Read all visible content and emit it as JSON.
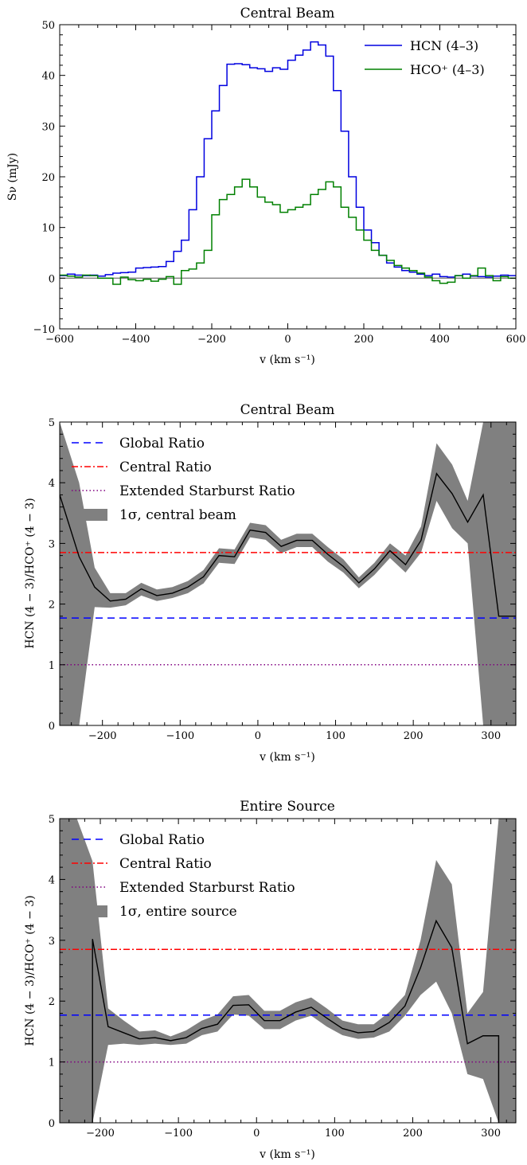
{
  "chart_data": [
    {
      "type": "line",
      "title": "Central Beam",
      "xlabel": "v (km s⁻¹)",
      "ylabel": "Sν (mJy)",
      "xlim": [
        -600,
        600
      ],
      "ylim": [
        -10,
        50
      ],
      "xticks": [
        -600,
        -400,
        -200,
        0,
        200,
        400,
        600
      ],
      "xtick_labels": [
        "−600",
        "−400",
        "−200",
        "0",
        "200",
        "400",
        "600"
      ],
      "yticks": [
        -10,
        0,
        10,
        20,
        30,
        40,
        50
      ],
      "ytick_labels": [
        "−10",
        "0",
        "10",
        "20",
        "30",
        "40",
        "50"
      ],
      "legend_position": "top-right",
      "zero_line": true,
      "step_width": 20,
      "x": [
        -600,
        -580,
        -560,
        -540,
        -520,
        -500,
        -480,
        -460,
        -440,
        -420,
        -400,
        -380,
        -360,
        -340,
        -320,
        -300,
        -280,
        -260,
        -240,
        -220,
        -200,
        -180,
        -160,
        -140,
        -120,
        -100,
        -80,
        -60,
        -40,
        -20,
        0,
        20,
        40,
        60,
        80,
        100,
        120,
        140,
        160,
        180,
        200,
        220,
        240,
        260,
        280,
        300,
        320,
        340,
        360,
        380,
        400,
        420,
        440,
        460,
        480,
        500,
        520,
        540,
        560,
        580
      ],
      "series": [
        {
          "name": "HCN (4–3)",
          "color": "#0000e0",
          "values": [
            0.5,
            0.8,
            0.6,
            0.5,
            0.6,
            0.4,
            0.7,
            1.0,
            1.1,
            1.2,
            2.0,
            2.1,
            2.2,
            2.3,
            3.3,
            5.3,
            7.5,
            13.5,
            20.0,
            27.5,
            33.0,
            38.0,
            42.2,
            42.3,
            42.1,
            41.5,
            41.3,
            40.8,
            41.5,
            41.2,
            43.0,
            44.0,
            45.0,
            46.6,
            46.0,
            43.8,
            37.0,
            29.0,
            20.0,
            14.0,
            9.5,
            7.0,
            4.5,
            3.0,
            2.2,
            1.5,
            1.2,
            0.8,
            0.5,
            0.8,
            0.3,
            0.2,
            0.5,
            0.8,
            0.4,
            0.3,
            0.2,
            0.4,
            0.6,
            0.5
          ]
        },
        {
          "name": "HCO⁺ (4–3)",
          "color": "#008000",
          "values": [
            0.6,
            0.4,
            0.2,
            0.6,
            0.5,
            0.0,
            0.0,
            -1.2,
            0.2,
            -0.3,
            -0.5,
            -0.2,
            -0.6,
            -0.2,
            0.3,
            -1.2,
            1.5,
            1.8,
            3.0,
            5.5,
            12.5,
            15.5,
            16.5,
            18.0,
            19.5,
            18.0,
            16.0,
            15.0,
            14.5,
            13.0,
            13.5,
            14.0,
            14.5,
            16.5,
            17.5,
            19.0,
            18.0,
            14.0,
            12.0,
            9.5,
            7.5,
            5.5,
            4.5,
            3.5,
            2.5,
            2.0,
            1.5,
            1.0,
            0.2,
            -0.5,
            -1.0,
            -0.8,
            0.5,
            0.0,
            0.5,
            2.0,
            0.5,
            -0.5,
            0.3,
            0.0
          ]
        }
      ]
    },
    {
      "type": "line",
      "title": "Central Beam",
      "xlabel": "v (km s⁻¹)",
      "ylabel": "HCN (4 − 3)/HCO⁺ (4 − 3)",
      "xlim": [
        -255,
        332
      ],
      "ylim": [
        0,
        5
      ],
      "xticks": [
        -200,
        -100,
        0,
        100,
        200,
        300
      ],
      "xtick_labels": [
        "−200",
        "−100",
        "0",
        "100",
        "200",
        "300"
      ],
      "yticks": [
        0,
        1,
        2,
        3,
        4,
        5
      ],
      "ytick_labels": [
        "0",
        "1",
        "2",
        "3",
        "4",
        "5"
      ],
      "legend_position": "top-left",
      "reference_lines": [
        {
          "name": "Global Ratio",
          "value": 1.77,
          "color": "#0000ff",
          "style": "dashed"
        },
        {
          "name": "Central Ratio",
          "value": 2.85,
          "color": "#ff0000",
          "style": "dashdot"
        },
        {
          "name": "Extended Starburst Ratio",
          "value": 1.0,
          "color": "#800080",
          "style": "dotted"
        }
      ],
      "band_name": "1σ, central beam",
      "band_color": "#808080",
      "x": [
        -255,
        -230,
        -210,
        -190,
        -170,
        -150,
        -130,
        -110,
        -90,
        -70,
        -50,
        -30,
        -10,
        10,
        30,
        50,
        70,
        90,
        110,
        130,
        150,
        170,
        190,
        210,
        230,
        250,
        270,
        290,
        310,
        332
      ],
      "ratio": [
        3.8,
        2.78,
        2.28,
        2.05,
        2.08,
        2.25,
        2.14,
        2.18,
        2.28,
        2.45,
        2.8,
        2.78,
        3.22,
        3.18,
        2.95,
        3.05,
        3.05,
        2.82,
        2.62,
        2.35,
        2.58,
        2.88,
        2.65,
        3.05,
        4.15,
        3.82,
        3.35,
        3.8,
        1.8,
        1.8
      ],
      "band_lower": [
        0.0,
        0.0,
        1.95,
        1.94,
        1.98,
        2.14,
        2.05,
        2.1,
        2.18,
        2.34,
        2.68,
        2.66,
        3.1,
        3.06,
        2.84,
        2.94,
        2.94,
        2.7,
        2.52,
        2.26,
        2.48,
        2.76,
        2.52,
        2.85,
        3.7,
        3.25,
        3.0,
        0.0,
        0.0,
        0.0
      ],
      "band_upper": [
        5.0,
        4.0,
        2.6,
        2.18,
        2.18,
        2.35,
        2.24,
        2.28,
        2.38,
        2.56,
        2.92,
        2.9,
        3.34,
        3.3,
        3.06,
        3.16,
        3.16,
        2.94,
        2.74,
        2.44,
        2.68,
        3.0,
        2.8,
        3.28,
        4.65,
        4.3,
        3.7,
        5.0,
        5.0,
        5.0
      ]
    },
    {
      "type": "line",
      "title": "Entire Source",
      "xlabel": "v (km s⁻¹)",
      "ylabel": "HCN (4 − 3)/HCO⁺ (4 − 3)",
      "xlim": [
        -252,
        332
      ],
      "ylim": [
        0,
        5
      ],
      "xticks": [
        -200,
        -100,
        0,
        100,
        200,
        300
      ],
      "xtick_labels": [
        "−200",
        "−100",
        "0",
        "100",
        "200",
        "300"
      ],
      "yticks": [
        0,
        1,
        2,
        3,
        4,
        5
      ],
      "ytick_labels": [
        "0",
        "1",
        "2",
        "3",
        "4",
        "5"
      ],
      "legend_position": "top-left",
      "reference_lines": [
        {
          "name": "Global Ratio",
          "value": 1.77,
          "color": "#0000ff",
          "style": "dashed"
        },
        {
          "name": "Central Ratio",
          "value": 2.85,
          "color": "#ff0000",
          "style": "dashdot"
        },
        {
          "name": "Extended Starburst Ratio",
          "value": 1.0,
          "color": "#800080",
          "style": "dotted"
        }
      ],
      "band_name": "1σ, entire source",
      "band_color": "#808080",
      "x": [
        -210,
        -210,
        -190,
        -170,
        -150,
        -130,
        -110,
        -90,
        -70,
        -50,
        -30,
        -10,
        10,
        30,
        50,
        70,
        90,
        110,
        130,
        150,
        170,
        190,
        210,
        230,
        250,
        270,
        290,
        310,
        310
      ],
      "ratio": [
        0.0,
        3.02,
        1.58,
        1.48,
        1.38,
        1.4,
        1.35,
        1.4,
        1.55,
        1.62,
        1.93,
        1.94,
        1.68,
        1.68,
        1.82,
        1.9,
        1.72,
        1.55,
        1.48,
        1.5,
        1.65,
        1.92,
        2.55,
        3.32,
        2.88,
        1.3,
        1.43,
        1.43,
        0.0
      ],
      "band_x": [
        -252,
        -230,
        -210,
        -190,
        -170,
        -150,
        -130,
        -110,
        -90,
        -70,
        -50,
        -30,
        -10,
        10,
        30,
        50,
        70,
        90,
        110,
        130,
        150,
        170,
        190,
        210,
        230,
        250,
        270,
        290,
        310,
        332
      ],
      "band_lower": [
        0.0,
        0.0,
        0.0,
        1.28,
        1.3,
        1.28,
        1.3,
        1.28,
        1.3,
        1.44,
        1.5,
        1.78,
        1.76,
        1.54,
        1.54,
        1.68,
        1.76,
        1.58,
        1.44,
        1.38,
        1.4,
        1.5,
        1.76,
        2.1,
        2.32,
        1.8,
        0.8,
        0.72,
        0.0,
        0.0
      ],
      "band_upper": [
        5.0,
        5.0,
        4.3,
        1.88,
        1.68,
        1.5,
        1.52,
        1.42,
        1.52,
        1.68,
        1.78,
        2.08,
        2.1,
        1.84,
        1.84,
        1.98,
        2.06,
        1.88,
        1.68,
        1.62,
        1.62,
        1.82,
        2.1,
        3.0,
        4.32,
        3.92,
        1.8,
        2.15,
        5.0,
        5.0
      ]
    }
  ]
}
